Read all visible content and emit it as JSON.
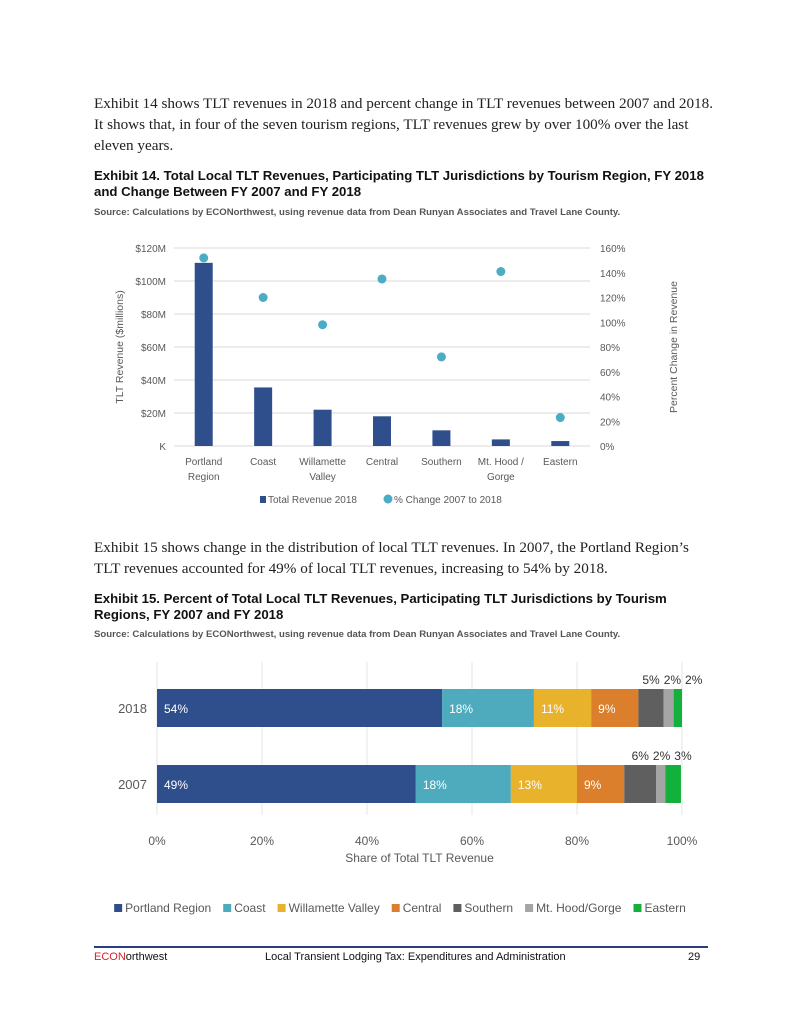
{
  "paragraph1": "Exhibit 14 shows TLT revenues in 2018 and percent change in TLT revenues between 2007 and 2018. It shows that, in four of the seven tourism regions, TLT revenues grew by over 100% over the last eleven years.",
  "exhibit14": {
    "title": "Exhibit 14. Total Local TLT Revenues, Participating TLT Jurisdictions by Tourism Region, FY 2018 and Change Between FY 2007 and FY 2018",
    "source": "Source: Calculations by ECONorthwest, using revenue data from Dean Runyan Associates and Travel Lane County."
  },
  "paragraph2": "Exhibit 15 shows change in the distribution of local TLT revenues. In 2007, the Portland Region’s TLT revenues accounted for 49% of local TLT revenues, increasing to 54% by 2018.",
  "exhibit15": {
    "title": "Exhibit 15. Percent of Total Local TLT Revenues, Participating TLT Jurisdictions by Tourism Regions, FY 2007 and FY 2018",
    "source": "Source: Calculations by ECONorthwest, using revenue data from Dean Runyan Associates and Travel Lane County."
  },
  "footer": {
    "brand_a": "ECON",
    "brand_b": "orthwest",
    "title": "Local Transient Lodging Tax: Expenditures and Administration",
    "page": "29"
  },
  "chart_data": [
    {
      "type": "bar",
      "title": "",
      "categories": [
        [
          "Portland",
          "Region"
        ],
        [
          "Coast"
        ],
        [
          "Willamette",
          "Valley"
        ],
        [
          "Central"
        ],
        [
          "Southern"
        ],
        [
          "Mt. Hood /",
          "Gorge"
        ],
        [
          "Eastern"
        ]
      ],
      "series": [
        {
          "name": "Total Revenue 2018",
          "type": "bar",
          "axis": "left",
          "color": "#2e4f8c",
          "values": [
            111,
            35.5,
            22,
            18,
            9.5,
            4,
            3
          ]
        },
        {
          "name": "% Change 2007 to 2018",
          "type": "scatter",
          "axis": "right",
          "color": "#4bacc6",
          "values": [
            152,
            120,
            98,
            135,
            72,
            141,
            23
          ]
        }
      ],
      "ylabel": "TLT Revenue ($millions)",
      "ylabel_right": "Percent Change in Revenue",
      "ylim": [
        0,
        120
      ],
      "yticks": [
        "K",
        "$20M",
        "$40M",
        "$60M",
        "$80M",
        "$100M",
        "$120M"
      ],
      "ylim_right": [
        0,
        160
      ],
      "yticks_right": [
        "0%",
        "20%",
        "40%",
        "60%",
        "80%",
        "100%",
        "120%",
        "140%",
        "160%"
      ],
      "grid": true,
      "legend": "bottom"
    },
    {
      "type": "bar",
      "stacked": true,
      "orientation": "horizontal",
      "categories": [
        "2018",
        "2007"
      ],
      "series": [
        {
          "name": "Portland Region",
          "color": "#2e4f8c",
          "values": [
            54.3,
            49.3
          ],
          "labels": [
            "54%",
            "49%"
          ]
        },
        {
          "name": "Coast",
          "color": "#4eaabd",
          "values": [
            17.5,
            18.1
          ],
          "labels": [
            "18%",
            "18%"
          ]
        },
        {
          "name": "Willamette Valley",
          "color": "#e8b22c",
          "values": [
            10.9,
            12.6
          ],
          "labels": [
            "11%",
            "13%"
          ]
        },
        {
          "name": "Central",
          "color": "#db7f2c",
          "values": [
            9,
            9
          ],
          "labels": [
            "9%",
            "9%"
          ]
        },
        {
          "name": "Southern",
          "color": "#5f5f5f",
          "values": [
            4.8,
            6.1
          ],
          "labels": [
            "5%",
            "6%"
          ]
        },
        {
          "name": "Mt. Hood/Gorge",
          "color": "#a5a5a5",
          "values": [
            1.9,
            1.7
          ],
          "labels": [
            "2%",
            "2%"
          ]
        },
        {
          "name": "Eastern",
          "color": "#13b13b",
          "values": [
            1.6,
            3.0
          ],
          "labels": [
            "2%",
            "3%"
          ]
        }
      ],
      "xlabel": "Share of Total TLT Revenue",
      "xlim": [
        0,
        100
      ],
      "xticks": [
        "0%",
        "20%",
        "40%",
        "60%",
        "80%",
        "100%"
      ],
      "grid": true,
      "legend": "bottom"
    }
  ]
}
